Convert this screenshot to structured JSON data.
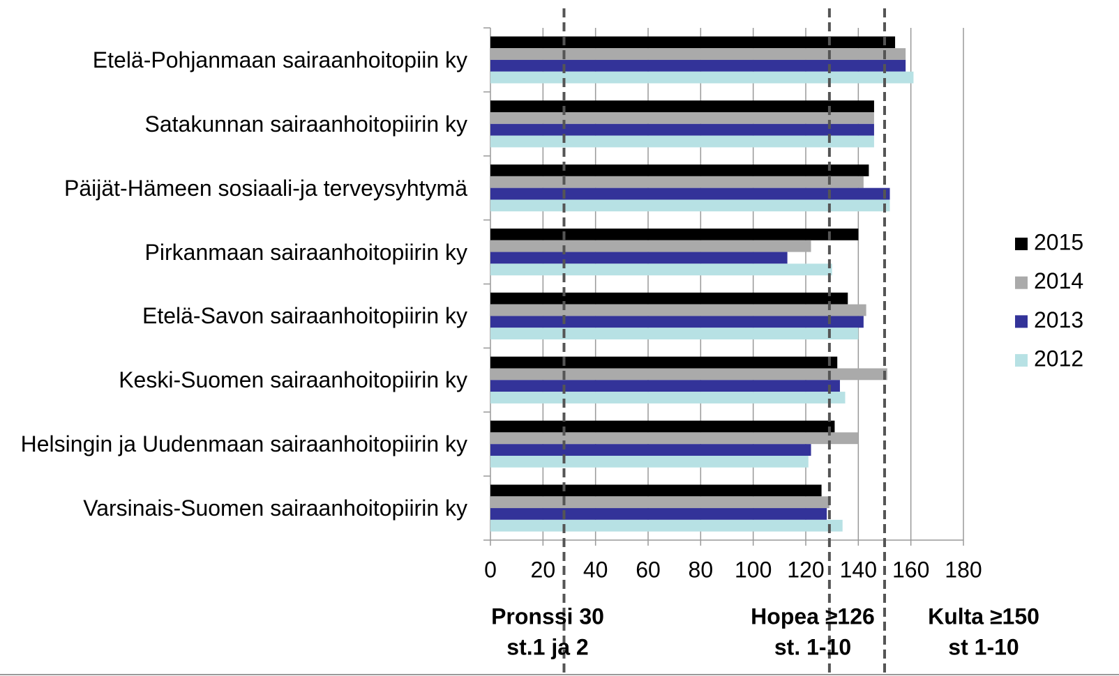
{
  "chart_data": {
    "type": "bar",
    "orientation": "horizontal",
    "categories": [
      "Etelä-Pohjanmaan sairaanhoitopiin ky",
      "Satakunnan sairaanhoitopiirin ky",
      "Päijät-Hämeen sosiaali-ja terveysyhtymä",
      "Pirkanmaan sairaanhoitopiirin ky",
      "Etelä-Savon sairaanhoitopiirin ky",
      "Keski-Suomen sairaanhoitopiirin ky",
      "Helsingin ja Uudenmaan sairaanhoitopiirin ky",
      "Varsinais-Suomen sairaanhoitopiirin ky"
    ],
    "series": [
      {
        "name": "2015",
        "color": "#000000",
        "values": [
          154,
          146,
          144,
          140,
          136,
          132,
          131,
          126
        ]
      },
      {
        "name": "2014",
        "color": "#aaaaaa",
        "values": [
          158,
          146,
          142,
          122,
          143,
          151,
          140,
          129
        ]
      },
      {
        "name": "2013",
        "color": "#333399",
        "values": [
          158,
          146,
          152,
          113,
          142,
          133,
          122,
          128
        ]
      },
      {
        "name": "2012",
        "color": "#b7e1e4",
        "values": [
          161,
          146,
          152,
          130,
          140,
          135,
          121,
          134
        ]
      }
    ],
    "xlim": [
      0,
      180
    ],
    "xticks": [
      0,
      20,
      40,
      60,
      80,
      100,
      120,
      140,
      160,
      180
    ],
    "grid": true,
    "legend": "right",
    "reference_lines": [
      {
        "value": 28,
        "label_lines": [
          "Pronssi 30",
          "st.1 ja 2"
        ]
      },
      {
        "value": 129,
        "label_lines": [
          "Hopea ≥126",
          "st. 1-10"
        ]
      },
      {
        "value": 150,
        "label_lines": [
          "Kulta ≥150",
          "st 1-10"
        ]
      }
    ]
  }
}
